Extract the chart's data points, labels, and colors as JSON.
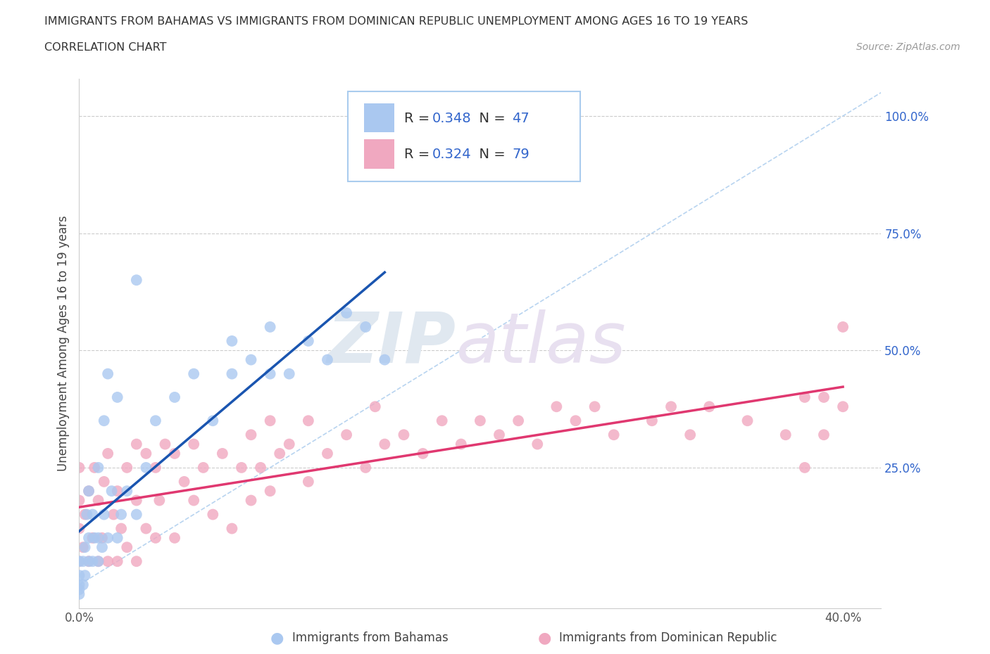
{
  "title_line1": "IMMIGRANTS FROM BAHAMAS VS IMMIGRANTS FROM DOMINICAN REPUBLIC UNEMPLOYMENT AMONG AGES 16 TO 19 YEARS",
  "title_line2": "CORRELATION CHART",
  "source": "Source: ZipAtlas.com",
  "ylabel": "Unemployment Among Ages 16 to 19 years",
  "xlim": [
    0.0,
    0.42
  ],
  "ylim": [
    -0.05,
    1.08
  ],
  "R_bahamas": 0.348,
  "N_bahamas": 47,
  "R_dominican": 0.324,
  "N_dominican": 79,
  "legend_label1": "Immigrants from Bahamas",
  "legend_label2": "Immigrants from Dominican Republic",
  "color_bahamas": "#aac8f0",
  "color_dominican": "#f0a8c0",
  "line_color_bahamas": "#1a55b0",
  "line_color_dominican": "#e03870",
  "diag_color": "#b8d4f0",
  "bahamas_x": [
    0.0,
    0.0,
    0.0,
    0.0,
    0.0,
    0.002,
    0.002,
    0.003,
    0.003,
    0.004,
    0.005,
    0.005,
    0.005,
    0.007,
    0.007,
    0.008,
    0.01,
    0.01,
    0.01,
    0.012,
    0.013,
    0.013,
    0.015,
    0.015,
    0.017,
    0.02,
    0.02,
    0.022,
    0.025,
    0.03,
    0.03,
    0.035,
    0.04,
    0.05,
    0.06,
    0.07,
    0.08,
    0.08,
    0.09,
    0.1,
    0.1,
    0.11,
    0.12,
    0.13,
    0.14,
    0.15,
    0.16
  ],
  "bahamas_y": [
    -0.02,
    -0.01,
    0.0,
    0.02,
    0.05,
    0.0,
    0.05,
    0.02,
    0.08,
    0.15,
    0.05,
    0.1,
    0.2,
    0.05,
    0.15,
    0.1,
    0.05,
    0.1,
    0.25,
    0.08,
    0.15,
    0.35,
    0.1,
    0.45,
    0.2,
    0.1,
    0.4,
    0.15,
    0.2,
    0.15,
    0.65,
    0.25,
    0.35,
    0.4,
    0.45,
    0.35,
    0.45,
    0.52,
    0.48,
    0.45,
    0.55,
    0.45,
    0.52,
    0.48,
    0.58,
    0.55,
    0.48
  ],
  "dominican_x": [
    0.0,
    0.0,
    0.0,
    0.0,
    0.002,
    0.003,
    0.005,
    0.005,
    0.007,
    0.008,
    0.01,
    0.01,
    0.012,
    0.013,
    0.015,
    0.015,
    0.018,
    0.02,
    0.02,
    0.022,
    0.025,
    0.025,
    0.03,
    0.03,
    0.03,
    0.035,
    0.035,
    0.04,
    0.04,
    0.042,
    0.045,
    0.05,
    0.05,
    0.055,
    0.06,
    0.06,
    0.065,
    0.07,
    0.075,
    0.08,
    0.085,
    0.09,
    0.09,
    0.095,
    0.1,
    0.1,
    0.105,
    0.11,
    0.12,
    0.12,
    0.13,
    0.14,
    0.15,
    0.155,
    0.16,
    0.17,
    0.18,
    0.19,
    0.2,
    0.21,
    0.22,
    0.23,
    0.24,
    0.25,
    0.26,
    0.27,
    0.28,
    0.3,
    0.31,
    0.32,
    0.33,
    0.35,
    0.37,
    0.38,
    0.38,
    0.39,
    0.39,
    0.4,
    0.4
  ],
  "dominican_y": [
    0.05,
    0.12,
    0.18,
    0.25,
    0.08,
    0.15,
    0.05,
    0.2,
    0.1,
    0.25,
    0.05,
    0.18,
    0.1,
    0.22,
    0.05,
    0.28,
    0.15,
    0.05,
    0.2,
    0.12,
    0.08,
    0.25,
    0.05,
    0.18,
    0.3,
    0.12,
    0.28,
    0.1,
    0.25,
    0.18,
    0.3,
    0.1,
    0.28,
    0.22,
    0.18,
    0.3,
    0.25,
    0.15,
    0.28,
    0.12,
    0.25,
    0.18,
    0.32,
    0.25,
    0.2,
    0.35,
    0.28,
    0.3,
    0.22,
    0.35,
    0.28,
    0.32,
    0.25,
    0.38,
    0.3,
    0.32,
    0.28,
    0.35,
    0.3,
    0.35,
    0.32,
    0.35,
    0.3,
    0.38,
    0.35,
    0.38,
    0.32,
    0.35,
    0.38,
    0.32,
    0.38,
    0.35,
    0.32,
    0.25,
    0.4,
    0.32,
    0.4,
    0.55,
    0.38
  ]
}
